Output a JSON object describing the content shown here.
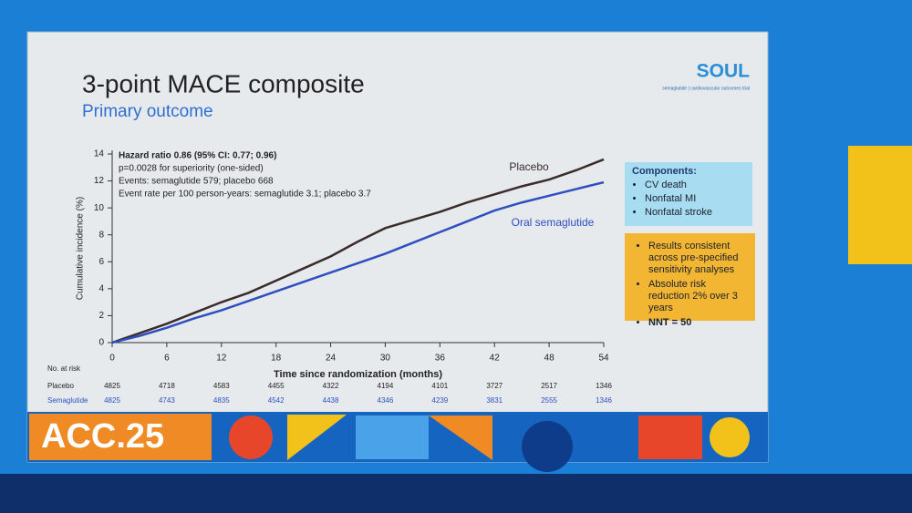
{
  "slide": {
    "title": "3-point MACE composite",
    "subtitle": "Primary outcome",
    "logo": "SOUL",
    "logo_tagline": "semaglutide | cardiovascular outcomes trial"
  },
  "chart_data": {
    "type": "line",
    "ylabel": "Cumulative incidence (%)",
    "xlabel": "Time since randomization (months)",
    "annotations": [
      "Hazard ratio 0.86 (95% CI: 0.77; 0.96)",
      "p=0.0028 for superiority (one-sided)",
      "Events: semaglutide 579; placebo 668",
      "Event rate per 100 person-years: semaglutide 3.1; placebo 3.7"
    ],
    "x": [
      0,
      3,
      6,
      9,
      12,
      15,
      18,
      21,
      24,
      27,
      30,
      33,
      36,
      39,
      42,
      45,
      48,
      51,
      54
    ],
    "series": [
      {
        "name": "Placebo",
        "color": "#3b2b2b",
        "values": [
          0,
          0.7,
          1.4,
          2.2,
          3.0,
          3.7,
          4.6,
          5.5,
          6.4,
          7.5,
          8.5,
          9.1,
          9.7,
          10.4,
          11.0,
          11.6,
          12.1,
          12.8,
          13.6
        ]
      },
      {
        "name": "Oral semaglutide",
        "color": "#2f4fbf",
        "values": [
          0,
          0.5,
          1.1,
          1.8,
          2.4,
          3.1,
          3.8,
          4.5,
          5.2,
          5.9,
          6.6,
          7.4,
          8.2,
          9.0,
          9.8,
          10.4,
          10.9,
          11.4,
          11.9
        ]
      }
    ],
    "xlim": [
      0,
      54
    ],
    "xticks": [
      0,
      6,
      12,
      18,
      24,
      30,
      36,
      42,
      48,
      54
    ],
    "ylim": [
      0,
      14
    ],
    "yticks": [
      0,
      2,
      4,
      6,
      8,
      10,
      12,
      14
    ],
    "grid": false
  },
  "at_risk": {
    "title": "No. at risk",
    "rows": [
      {
        "label": "Placebo",
        "values": [
          4825,
          4718,
          4583,
          4455,
          4322,
          4194,
          4101,
          3727,
          2517,
          1346
        ]
      },
      {
        "label": "Semaglutide",
        "values": [
          4825,
          4743,
          4835,
          4542,
          4438,
          4346,
          4239,
          3831,
          2555,
          1346
        ]
      }
    ]
  },
  "components": {
    "title": "Components:",
    "items": [
      "CV death",
      "Nonfatal MI",
      "Nonfatal stroke"
    ]
  },
  "findings": {
    "items": [
      "Results consistent across pre-specified sensitivity analyses",
      "Absolute risk reduction 2% over 3 years",
      "NNT = 50"
    ]
  },
  "banner": {
    "text": "ACC.25"
  }
}
